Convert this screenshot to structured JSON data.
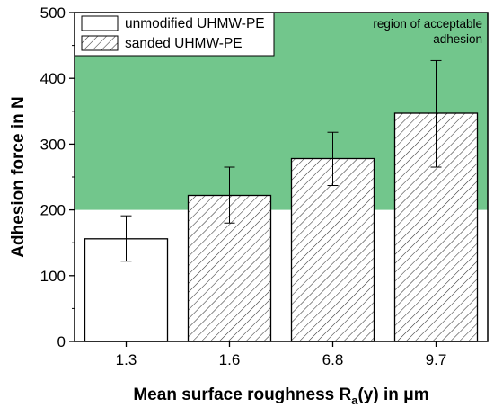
{
  "chart_data": {
    "type": "bar",
    "categories": [
      "1.3",
      "1.6",
      "6.8",
      "9.7"
    ],
    "series": [
      {
        "values": [
          156,
          222,
          278,
          347
        ],
        "error_low": [
          122,
          180,
          237,
          265
        ],
        "error_high": [
          191,
          265,
          318,
          427
        ],
        "bar_styles": [
          "unmodified",
          "sanded",
          "sanded",
          "sanded"
        ]
      }
    ],
    "xlabel": "Mean surface roughness R",
    "xlabel_subscript": "a",
    "xlabel_suffix": "(y) in μm",
    "ylabel": "Adhesion force in N",
    "ylim": [
      0,
      500
    ],
    "yticks": [
      "0",
      "100",
      "200",
      "300",
      "400",
      "500"
    ],
    "grid": false,
    "legend": {
      "placement": "top-left",
      "entries": [
        {
          "label": "unmodified UHMW-PE",
          "style": "unmodified"
        },
        {
          "label": "sanded UHMW-PE",
          "style": "sanded"
        }
      ]
    },
    "region": {
      "from": 200,
      "to": 500,
      "color": "#72c68c",
      "label_line1": "region of acceptable",
      "label_line2": "adhesion"
    }
  }
}
